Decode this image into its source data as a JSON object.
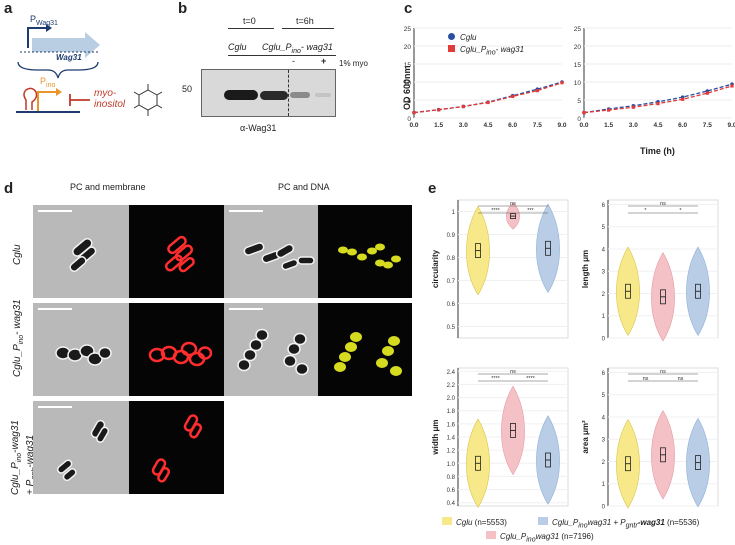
{
  "panels": {
    "a": "a",
    "b": "b",
    "c": "c",
    "d": "d",
    "e": "e"
  },
  "panel_a": {
    "promoter_wag31": "P",
    "promoter_wag31_sub": "Wag31",
    "gene": "Wag31",
    "promoter_ino": "P",
    "promoter_ino_sub": "ino",
    "inducer_1": "myo-",
    "inducer_2": "inositol"
  },
  "panel_b": {
    "t0": "t=0",
    "t6": "t=6h",
    "strain1": "Cglu",
    "strain2": "Cglu_P",
    "strain2_sub": "ino",
    "strain2_rest": "- wag31",
    "minus": "-",
    "plus": "+",
    "myo": "1% myo",
    "marker": "50",
    "antibody": "α-Wag31"
  },
  "panel_c": {
    "legend1": "Cglu",
    "legend2": "Cglu_P",
    "legend2_sub": "ino",
    "legend2_rest": "- wag31",
    "time_label": "Time (h)",
    "colors": {
      "cglu": "#2b4fa0",
      "pino": "#e03a3a"
    }
  },
  "panel_d": {
    "col1": "PC and membrane",
    "col2": "PC and DNA",
    "row1": "Cglu",
    "row2_a": "Cglu_P",
    "row2_sub": "ino",
    "row2_b": "- wag31",
    "row3_a": "Cglu_P",
    "row3_sub": "ino",
    "row3_b": "-wag31",
    "row3_c": "+ P",
    "row3_sub2": "gntr",
    "row3_d": "-wag31"
  },
  "panel_e": {
    "legend": [
      {
        "a": "Cglu",
        "sub": "",
        "b": "",
        "n": " (n=5553)",
        "color": "#f7e98a"
      },
      {
        "a": "Cglu_P",
        "sub": "ino",
        "b": "wag31",
        "n": " (n=7196)",
        "color": "#f4c1c6"
      },
      {
        "a": "Cglu_P",
        "sub": "ino",
        "b": "wag31 + P",
        "sub2": "gntr",
        "c": "-wag31",
        "n": " (n=5536)",
        "color": "#b9cde6"
      }
    ]
  },
  "chart_data": [
    {
      "type": "line",
      "xlabel": "",
      "ylabel": "OD 600nm",
      "x": [
        0.0,
        1.5,
        3.0,
        4.5,
        6.0,
        7.5,
        9.0
      ],
      "xticks": [
        "0.0",
        "1.5",
        "3.0",
        "4.5",
        "6.0",
        "7.5",
        "9.0"
      ],
      "yticks": [
        "0",
        "5",
        "10",
        "15",
        "20",
        "25"
      ],
      "ylim": [
        0,
        25
      ],
      "series": [
        {
          "name": "Cglu",
          "values": [
            1.5,
            2.3,
            3.2,
            4.4,
            6.2,
            8.0,
            10.0
          ]
        },
        {
          "name": "Cglu_Pino- wag31",
          "values": [
            1.5,
            2.3,
            3.2,
            4.3,
            6.0,
            7.6,
            9.8
          ]
        }
      ]
    },
    {
      "type": "line",
      "xlabel": "Time (h)",
      "ylabel": "",
      "x": [
        0.0,
        1.5,
        3.0,
        4.5,
        6.0,
        7.5,
        9.0
      ],
      "xticks": [
        "0.0",
        "1.5",
        "3.0",
        "4.5",
        "6.0",
        "7.5",
        "9.0"
      ],
      "yticks": [
        "0",
        "5",
        "10",
        "15",
        "20",
        "25"
      ],
      "ylim": [
        0,
        25
      ],
      "series": [
        {
          "name": "Cglu",
          "values": [
            1.5,
            2.5,
            3.4,
            4.5,
            5.8,
            7.5,
            9.4
          ]
        },
        {
          "name": "Cglu_Pino- wag31",
          "values": [
            1.5,
            2.2,
            3.0,
            4.0,
            5.2,
            6.9,
            8.9
          ]
        }
      ]
    },
    {
      "type": "violin",
      "ylabel": "circularity",
      "yticks": [
        "0.5",
        "0.6",
        "0.7",
        "0.8",
        "0.9",
        "1"
      ],
      "ylim": [
        0.45,
        1.05
      ],
      "medians": [
        0.83,
        0.98,
        0.84
      ],
      "sig": [
        "****",
        "***",
        "ns"
      ]
    },
    {
      "type": "violin",
      "ylabel": "length μm",
      "yticks": [
        "0",
        "1",
        "2",
        "3",
        "4",
        "5",
        "6"
      ],
      "ylim": [
        0,
        6.2
      ],
      "medians": [
        2.1,
        1.85,
        2.1
      ],
      "sig": [
        "*",
        "*",
        "ns"
      ]
    },
    {
      "type": "violin",
      "ylabel": "width μm",
      "yticks": [
        "0.4",
        "0.6",
        "0.8",
        "1.0",
        "1.2",
        "1.4",
        "1.6",
        "1.8",
        "2.0",
        "2.2",
        "2.4"
      ],
      "ylim": [
        0.35,
        2.45
      ],
      "medians": [
        1.0,
        1.5,
        1.05
      ],
      "sig": [
        "****",
        "****",
        "ns"
      ]
    },
    {
      "type": "violin",
      "ylabel": "area μm²",
      "yticks": [
        "0",
        "1",
        "2",
        "3",
        "4",
        "5",
        "6"
      ],
      "ylim": [
        0,
        6.2
      ],
      "medians": [
        1.9,
        2.3,
        1.95
      ],
      "sig": [
        "ns",
        "ns",
        "ns"
      ]
    }
  ]
}
